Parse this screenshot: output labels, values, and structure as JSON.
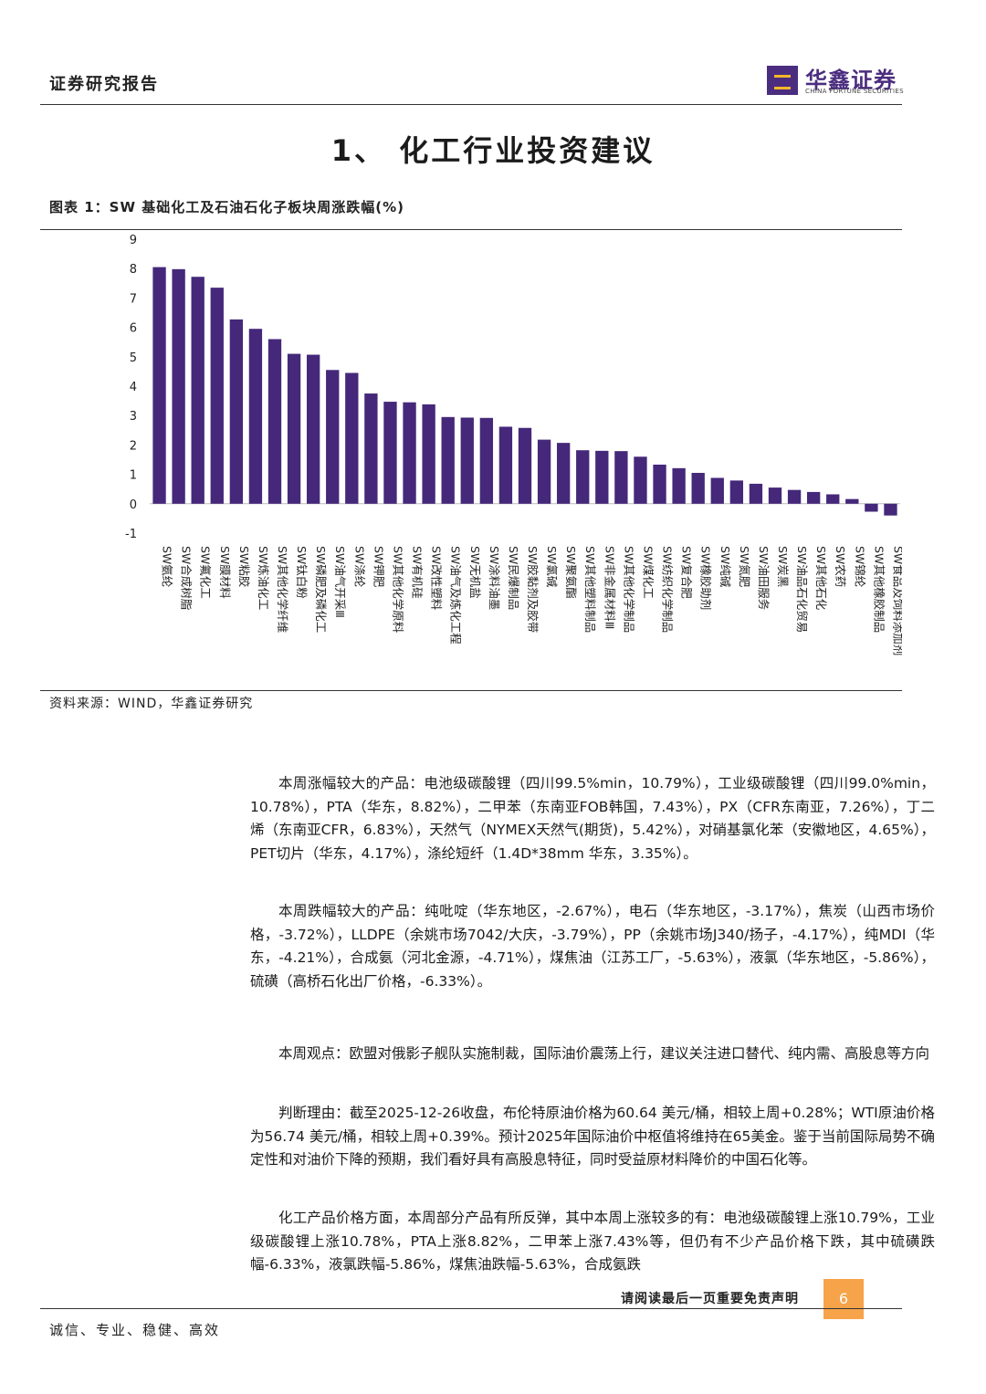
{
  "header": {
    "section": "证券研究报告",
    "logo_cn": "华鑫证券",
    "logo_en": "CHINA FORTUNE SECURITIES"
  },
  "title": "1、 化工行业投资建议",
  "chart_caption": "图表 1：SW 基础化工及石油石化子板块周涨跌幅(%)",
  "colors": {
    "bar": "#45287a",
    "accent": "#4b2d7f",
    "page_badge": "#f6a34a"
  },
  "chart_data": {
    "type": "bar",
    "title": "图表 1：SW 基础化工及石油石化子板块周涨跌幅(%)",
    "ylim": [
      -1,
      9
    ],
    "yticks": [
      -1,
      0,
      1,
      2,
      3,
      4,
      5,
      6,
      7,
      8,
      9
    ],
    "grid": false,
    "categories": [
      "SW氨纶",
      "SW合成树脂",
      "SW氟化工",
      "SW膜材料",
      "SW粘胶",
      "SW炼油化工",
      "SW其他化学纤维",
      "SW钛白粉",
      "SW磷肥及磷化工",
      "SW油气开采Ⅲ",
      "SW涤纶",
      "SW钾肥",
      "SW其他化学原料",
      "SW有机硅",
      "SW改性塑料",
      "SW油气及炼化工程",
      "SW无机盐",
      "SW涂料油墨",
      "SW民爆制品",
      "SW胶黏剂及胶带",
      "SW氯碱",
      "SW聚氨酯",
      "SW其他塑料制品",
      "SW非金属材料Ⅲ",
      "SW其他化学制品",
      "SW煤化工",
      "SW纺织化学制品",
      "SW复合肥",
      "SW橡胶助剂",
      "SW纯碱",
      "SW氮肥",
      "SW油田服务",
      "SW炭黑",
      "SW油品石化贸易",
      "SW其他石化",
      "SW农药",
      "SW锦纶",
      "SW其他橡胶制品",
      "SW食品及饲料添加剂"
    ],
    "values": [
      8.05,
      7.98,
      7.72,
      7.35,
      6.27,
      5.95,
      5.6,
      5.1,
      5.07,
      4.55,
      4.45,
      3.75,
      3.47,
      3.45,
      3.38,
      2.95,
      2.93,
      2.92,
      2.62,
      2.58,
      2.18,
      2.07,
      1.82,
      1.8,
      1.79,
      1.6,
      1.33,
      1.21,
      1.05,
      0.88,
      0.79,
      0.68,
      0.55,
      0.47,
      0.4,
      0.32,
      0.16,
      -0.27,
      -0.4
    ]
  },
  "source": "资料来源：WIND，华鑫证券研究",
  "body": {
    "p1": "本周涨幅较大的产品：电池级碳酸锂（四川99.5%min，10.79%），工业级碳酸锂（四川99.0%min，10.78%），PTA（华东，8.82%），二甲苯（东南亚FOB韩国，7.43%），PX（CFR东南亚，7.26%），丁二烯（东南亚CFR，6.83%），天然气（NYMEX天然气(期货)，5.42%），对硝基氯化苯（安徽地区，4.65%），PET切片（华东，4.17%），涤纶短纤（1.4D*38mm 华东，3.35%）。",
    "p2": "本周跌幅较大的产品：纯吡啶（华东地区，-2.67%），电石（华东地区，-3.17%），焦炭（山西市场价格，-3.72%），LLDPE（余姚市场7042/大庆，-3.79%），PP（余姚市场J340/扬子，-4.17%），纯MDI（华东，-4.21%），合成氨（河北金源，-4.71%），煤焦油（江苏工厂，-5.63%），液氯（华东地区，-5.86%），硫磺（高桥石化出厂价格，-6.33%）。",
    "p3": "本周观点：欧盟对俄影子舰队实施制裁，国际油价震荡上行，建议关注进口替代、纯内需、高股息等方向",
    "p4": "判断理由：截至2025-12-26收盘，布伦特原油价格为60.64 美元/桶，相较上周+0.28%；WTI原油价格为56.74 美元/桶，相较上周+0.39%。预计2025年国际油价中枢值将维持在65美金。鉴于当前国际局势不确定性和对油价下降的预期，我们看好具有高股息特征，同时受益原材料降价的中国石化等。",
    "p5": "化工产品价格方面，本周部分产品有所反弹，其中本周上涨较多的有：电池级碳酸锂上涨10.79%，工业级碳酸锂上涨10.78%，PTA上涨8.82%，二甲苯上涨7.43%等，但仍有不少产品价格下跌，其中硫磺跌幅-6.33%，液氯跌幅-5.86%，煤焦油跌幅-5.63%，合成氨跌"
  },
  "page_note": "请阅读最后一页重要免责声明",
  "page_number": "6",
  "footer": "诚信、专业、稳健、高效"
}
